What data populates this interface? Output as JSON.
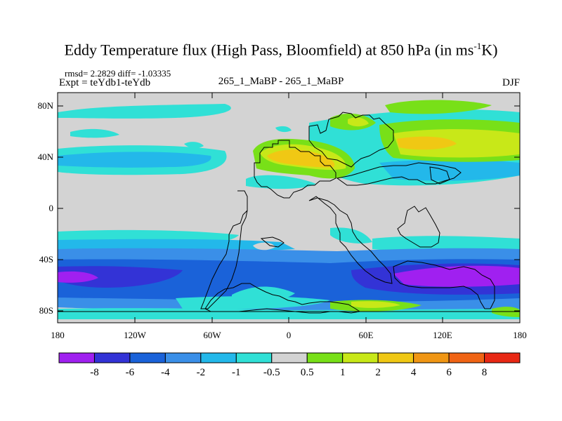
{
  "header": {
    "title_main": "Eddy Temperature flux (High Pass, Bloomfield) at 850 hPa (in ms",
    "title_sup": "-1",
    "title_end": "K)",
    "stats": "rmsd= 2.2829 diff= -1.03335",
    "expt": "Expt = teYdb1-teYdb",
    "center": "265_1_MaBP - 265_1_MaBP",
    "season": "DJF"
  },
  "axes": {
    "y_ticks": [
      "80N",
      "40N",
      "0",
      "40S",
      "80S"
    ],
    "x_ticks": [
      "180",
      "120W",
      "60W",
      "0",
      "60E",
      "120E",
      "180"
    ]
  },
  "colorbar": {
    "colors": [
      "#a020f0",
      "#3333d6",
      "#1a62d9",
      "#3a8fe8",
      "#23b8ea",
      "#30e0d6",
      "#d3d3d3",
      "#78e018",
      "#c8e818",
      "#f0c814",
      "#f09614",
      "#f06414",
      "#e82814"
    ],
    "labels": [
      "-8",
      "-6",
      "-4",
      "-2",
      "-1",
      "-0.5",
      "0.5",
      "1",
      "2",
      "4",
      "6",
      "8"
    ]
  },
  "legend_colors": {
    "ocean_background": "#d3d3d3",
    "coastline": "#000000"
  }
}
